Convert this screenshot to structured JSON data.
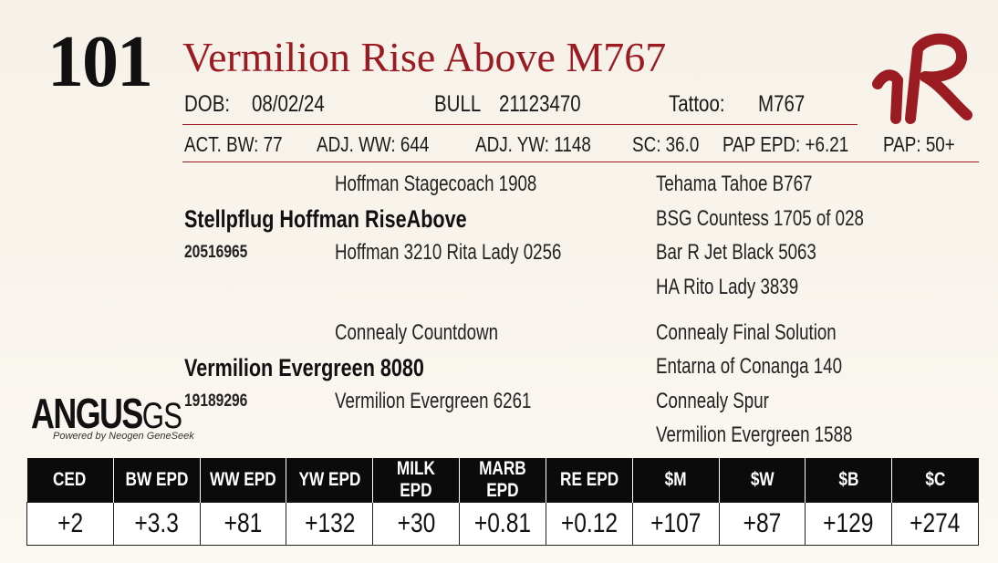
{
  "lot_number": "101",
  "animal_name": "Vermilion Rise Above M767",
  "info_row": {
    "dob_label": "DOB:",
    "dob": "08/02/24",
    "sex_label": "BULL",
    "registration": "21123470",
    "tattoo_label": "Tattoo:",
    "tattoo": "M767"
  },
  "performance": {
    "act_bw": "ACT. BW: 77",
    "adj_ww": "ADJ. WW: 644",
    "adj_yw": "ADJ. YW: 1148",
    "sc": "SC: 36.0",
    "pap_epd": "PAP EPD: +6.21",
    "pap": "PAP: 50+"
  },
  "pedigree": {
    "sire": {
      "name": "Stellpflug Hoffman RiseAbove",
      "reg": "20516965",
      "sire": "Hoffman Stagecoach 1908",
      "dam": "Hoffman 3210 Rita Lady 0256",
      "sire_sire": "Tehama Tahoe B767",
      "sire_dam": "BSG Countess 1705 of 028",
      "dam_sire": "Bar R Jet Black 5063",
      "dam_dam": "HA Rito Lady 3839"
    },
    "dam": {
      "name": "Vermilion Evergreen 8080",
      "reg": "19189296",
      "sire": "Connealy Countdown",
      "dam": "Vermilion Evergreen 6261",
      "sire_sire": "Connealy Final Solution",
      "sire_dam": "Entarna of Conanga 140",
      "dam_sire": "Connealy Spur",
      "dam_dam": "Vermilion Evergreen 1588"
    }
  },
  "logo": {
    "angus_main": "ANGUS",
    "angus_gs": "GS",
    "angus_sub": "Powered by Neogen GeneSeek",
    "ranch_mark": "VR"
  },
  "epd_table": {
    "headers": [
      "CED",
      "BW EPD",
      "WW EPD",
      "YW EPD",
      "MILK EPD",
      "MARB EPD",
      "RE EPD",
      "$M",
      "$W",
      "$B",
      "$C"
    ],
    "values": [
      "+2",
      "+3.3",
      "+81",
      "+132",
      "+30",
      "+0.81",
      "+0.12",
      "+107",
      "+87",
      "+129",
      "+274"
    ]
  },
  "colors": {
    "accent_red": "#9a1c22",
    "header_black": "#0b0b0b"
  }
}
